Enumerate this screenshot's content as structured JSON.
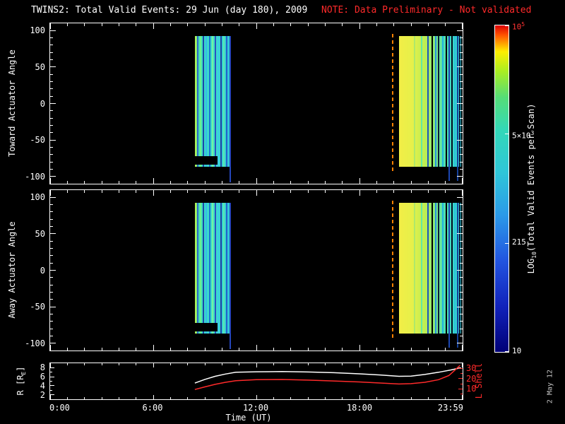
{
  "title": {
    "main": "TWINS2: Total Valid Events: 29 Jun (day 180), 2009",
    "note": "NOTE: Data Preliminary - Not validated",
    "note_color": "#ff2a2a"
  },
  "date_stamp": "2 May 12",
  "time_axis": {
    "label": "Time (UT)",
    "range_hours": [
      0,
      24
    ],
    "ticks": [
      {
        "hour": 0,
        "label": "0:00"
      },
      {
        "hour": 6,
        "label": "6:00"
      },
      {
        "hour": 12,
        "label": "12:00"
      },
      {
        "hour": 18,
        "label": "18:00"
      },
      {
        "hour": 23.983,
        "label": "23:59"
      }
    ]
  },
  "chart_data": {
    "type": "heatmap",
    "spectrograms": {
      "panels": [
        {
          "name": "toward",
          "ylabel": "Toward Actuator Angle"
        },
        {
          "name": "away",
          "ylabel": "Away Actuator Angle"
        }
      ],
      "ylim": [
        -110,
        110
      ],
      "yticks": [
        100,
        50,
        0,
        -50,
        -100
      ],
      "xlim_hours": [
        0,
        24
      ],
      "event_line": {
        "hour": 19.94,
        "color": "#ff8000",
        "dash": true
      },
      "blocks": [
        {
          "t0": 8.42,
          "t1": 10.5,
          "y_top": 93,
          "y_bottom": -87,
          "gradient": [
            {
              "p": 0,
              "c": "#c8f046"
            },
            {
              "p": 0.04,
              "c": "#8aee6e"
            },
            {
              "p": 0.1,
              "c": "#4ae4b0"
            },
            {
              "p": 0.3,
              "c": "#38d8cc"
            },
            {
              "p": 0.55,
              "c": "#40e0c6"
            },
            {
              "p": 0.8,
              "c": "#36d2d2"
            },
            {
              "p": 1,
              "c": "#30c4da"
            }
          ],
          "stripes": [
            {
              "t": 8.6,
              "w": 0.05,
              "c": "#2a66cc"
            },
            {
              "t": 8.75,
              "w": 0.04,
              "c": "#6cf08e"
            },
            {
              "t": 8.92,
              "w": 0.05,
              "c": "#1c46aa"
            },
            {
              "t": 9.08,
              "w": 0.04,
              "c": "#34bce8"
            },
            {
              "t": 9.28,
              "w": 0.06,
              "c": "#2070d0"
            },
            {
              "t": 9.46,
              "w": 0.04,
              "c": "#74f0a4"
            },
            {
              "t": 9.6,
              "w": 0.05,
              "c": "#2a52c2"
            },
            {
              "t": 9.78,
              "w": 0.05,
              "c": "#3acce8"
            },
            {
              "t": 9.94,
              "w": 0.04,
              "c": "#1c40a8"
            },
            {
              "t": 10.12,
              "w": 0.05,
              "c": "#5ceab2"
            },
            {
              "t": 10.28,
              "w": 0.04,
              "c": "#2262ca"
            },
            {
              "t": 10.46,
              "w": 0.06,
              "c": "#2546bc",
              "y_top": 93,
              "y_bottom": -108
            }
          ],
          "notches": [
            {
              "t0": 8.42,
              "t1": 9.72,
              "y_top": -72,
              "y_bottom": -84
            }
          ]
        },
        {
          "t0": 20.31,
          "t1": 23.9,
          "y_top": 93,
          "y_bottom": -87,
          "gradient": [
            {
              "p": 0,
              "c": "#f2ee46"
            },
            {
              "p": 0.22,
              "c": "#e6f04a"
            },
            {
              "p": 0.42,
              "c": "#bcee52"
            },
            {
              "p": 0.58,
              "c": "#84ea7c"
            },
            {
              "p": 0.72,
              "c": "#52e2ae"
            },
            {
              "p": 0.88,
              "c": "#3ad6ca"
            },
            {
              "p": 1,
              "c": "#32cad4"
            }
          ],
          "stripes": [
            {
              "t": 21.2,
              "w": 0.04,
              "c": "#aee86a"
            },
            {
              "t": 21.62,
              "w": 0.04,
              "c": "#62e8a2"
            },
            {
              "t": 21.98,
              "w": 0.05,
              "c": "#1c54ba"
            },
            {
              "t": 22.22,
              "w": 0.06,
              "c": "#000000",
              "y_top": 93,
              "y_bottom": -100
            },
            {
              "t": 22.42,
              "w": 0.04,
              "c": "#2292e0"
            },
            {
              "t": 22.62,
              "w": 0.05,
              "c": "#0a1c38"
            },
            {
              "t": 22.86,
              "w": 0.06,
              "c": "#22b2e0"
            },
            {
              "t": 23.04,
              "w": 0.05,
              "c": "#000000"
            },
            {
              "t": 23.2,
              "w": 0.05,
              "c": "#1c46b2",
              "y_top": 93,
              "y_bottom": -106
            },
            {
              "t": 23.4,
              "w": 0.08,
              "c": "#020c1e"
            },
            {
              "t": 23.56,
              "w": 0.05,
              "c": "#2ac2da"
            },
            {
              "t": 23.72,
              "w": 0.05,
              "c": "#14409a",
              "y_top": 93,
              "y_bottom": -106
            },
            {
              "t": 23.84,
              "w": 0.05,
              "c": "#081430"
            }
          ],
          "notches": []
        }
      ]
    },
    "ephemeris": {
      "left_axis": {
        "label_base": "R [R",
        "label_sub": "E",
        "label_after": "]",
        "ticks": [
          8,
          6,
          4,
          2
        ],
        "lim": [
          1,
          9
        ],
        "color": "#ffffff"
      },
      "right_axis": {
        "label": "L Shell",
        "ticks": [
          30,
          20,
          10
        ],
        "lim": [
          0,
          35
        ],
        "color": "#ff2a2a"
      },
      "series": [
        {
          "name": "R",
          "axis": "left",
          "color": "#ffffff",
          "points": [
            [
              8.42,
              4.6
            ],
            [
              9,
              5.4
            ],
            [
              9.6,
              6.1
            ],
            [
              10.2,
              6.6
            ],
            [
              10.8,
              7.0
            ],
            [
              12,
              7.1
            ],
            [
              13.5,
              7.15
            ],
            [
              15,
              7.05
            ],
            [
              16.5,
              6.9
            ],
            [
              18,
              6.65
            ],
            [
              19.2,
              6.4
            ],
            [
              20.3,
              6.1
            ],
            [
              21,
              6.15
            ],
            [
              21.8,
              6.5
            ],
            [
              22.6,
              7.0
            ],
            [
              23.3,
              7.5
            ],
            [
              23.9,
              8.0
            ]
          ]
        },
        {
          "name": "L Shell",
          "axis": "right",
          "color": "#ff2a2a",
          "points": [
            [
              8.42,
              9.5
            ],
            [
              9,
              12
            ],
            [
              9.6,
              14.5
            ],
            [
              10.2,
              16.5
            ],
            [
              10.8,
              18
            ],
            [
              12,
              19
            ],
            [
              13.5,
              19.2
            ],
            [
              15,
              18.6
            ],
            [
              16.5,
              17.8
            ],
            [
              18,
              16.8
            ],
            [
              19.2,
              15.8
            ],
            [
              20.3,
              14.8
            ],
            [
              21,
              15.2
            ],
            [
              21.8,
              16.5
            ],
            [
              22.6,
              19
            ],
            [
              23.2,
              23
            ],
            [
              23.6,
              29
            ],
            [
              23.85,
              33
            ]
          ]
        }
      ]
    },
    "colorbar": {
      "title_base": "LOG",
      "title_sub": "10",
      "title_after": "(Total Valid Events per Scan)",
      "gradient": [
        {
          "p": 0,
          "c": "#dd0000"
        },
        {
          "p": 0.03,
          "c": "#ff5500"
        },
        {
          "p": 0.08,
          "c": "#ffee00"
        },
        {
          "p": 0.14,
          "c": "#aaee22"
        },
        {
          "p": 0.22,
          "c": "#55dd77"
        },
        {
          "p": 0.32,
          "c": "#33d8b8"
        },
        {
          "p": 0.45,
          "c": "#2fc6d8"
        },
        {
          "p": 0.58,
          "c": "#2b9ae8"
        },
        {
          "p": 0.72,
          "c": "#2255e0"
        },
        {
          "p": 0.86,
          "c": "#1122bb"
        },
        {
          "p": 1,
          "c": "#000077"
        }
      ],
      "ticks": [
        {
          "base": "10",
          "exp": "5",
          "frac": 0,
          "color": "#ff3333"
        },
        {
          "base": "5×10",
          "exp": "3",
          "frac": 0.333,
          "color": "#ffffff"
        },
        {
          "base": "215",
          "exp": "",
          "frac": 0.667,
          "color": "#ffffff"
        },
        {
          "base": "10",
          "exp": "",
          "frac": 1,
          "color": "#ffffff"
        }
      ]
    }
  }
}
